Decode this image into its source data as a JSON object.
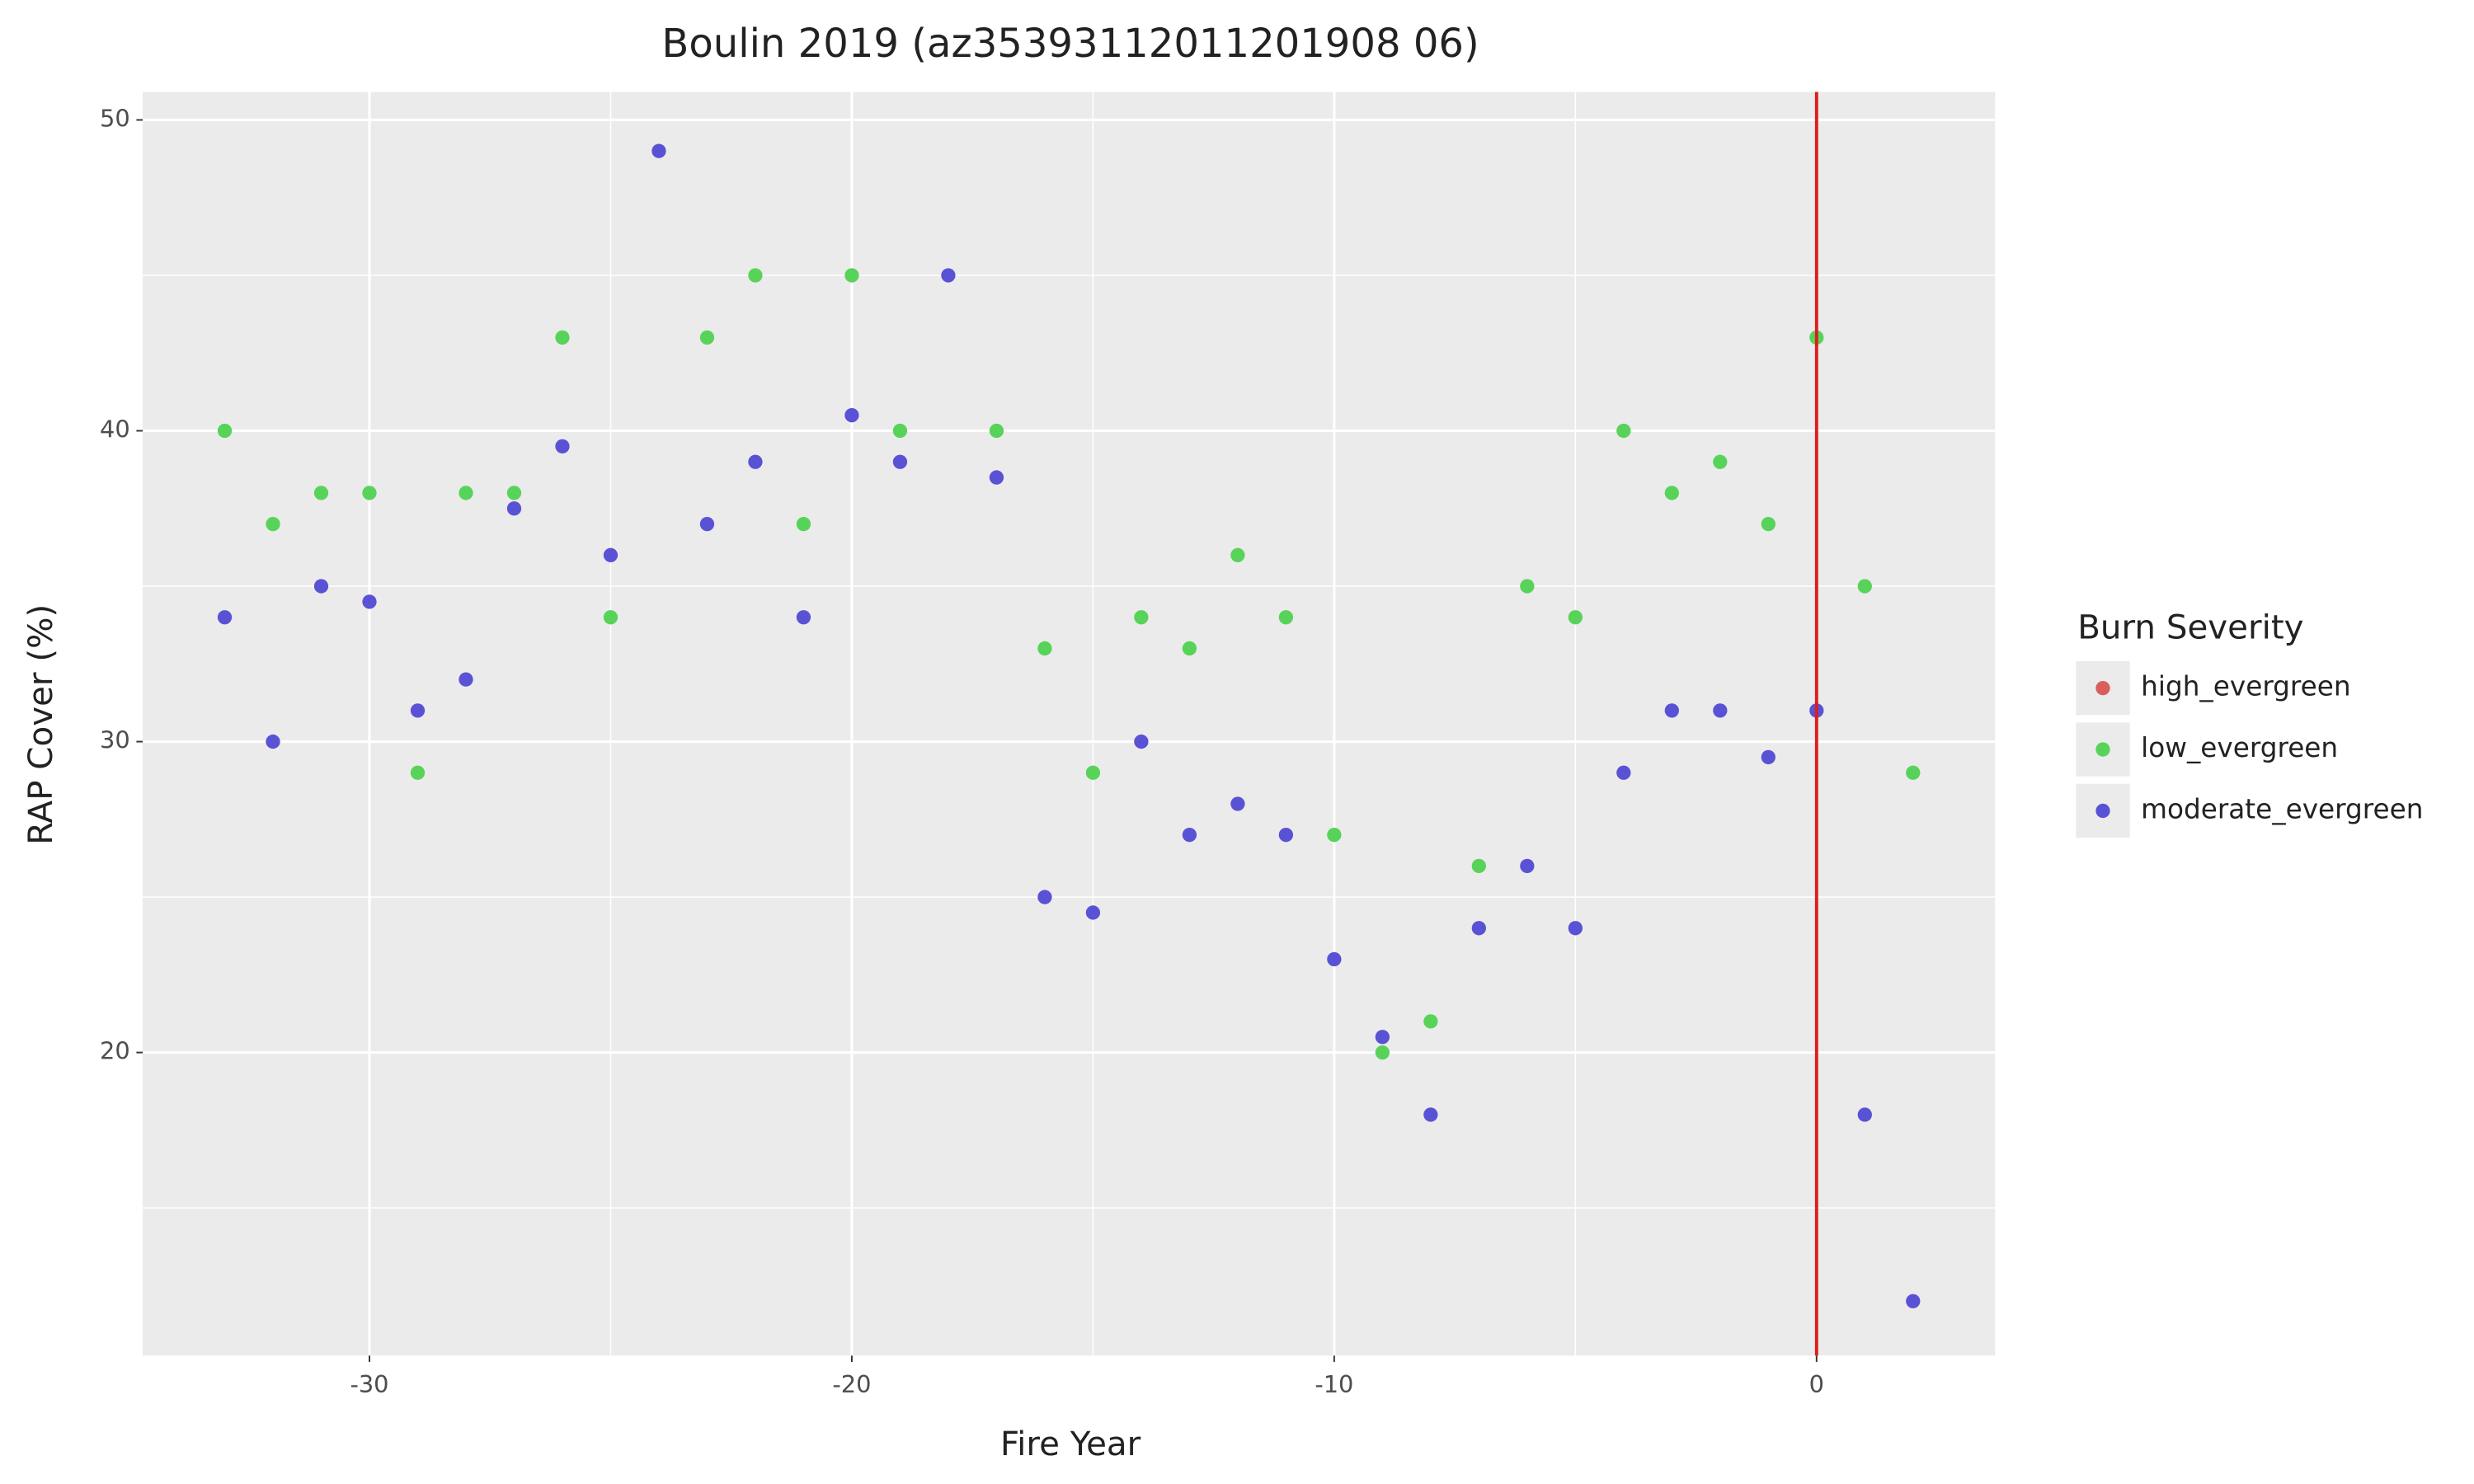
{
  "chart_data": {
    "type": "scatter",
    "title": "Boulin 2019 (az35393112011201908 06)",
    "x_label": "Fire Year",
    "y_label": "RAP Cover (%)",
    "legend_title": "Burn Severity",
    "legend_position": "right",
    "grid": true,
    "xlim": [
      -34.7,
      3.7
    ],
    "ylim": [
      10.25,
      50.9
    ],
    "xticks": [
      -30,
      -20,
      -10,
      0
    ],
    "yticks": [
      20,
      30,
      40,
      50
    ],
    "xminorticks": [
      -25,
      -15,
      -5
    ],
    "yminorticks": [
      15,
      25,
      35,
      45
    ],
    "vline": 0,
    "vline_color": "#dd1c1c",
    "series": [
      {
        "name": "high_evergreen",
        "color": "#d9605a",
        "x": [],
        "values": []
      },
      {
        "name": "low_evergreen",
        "color": "#58d35a",
        "x": [
          -33,
          -32,
          -31,
          -30,
          -29,
          -28,
          -27,
          -26,
          -25,
          -23,
          -22,
          -21,
          -20,
          -19,
          -17,
          -16,
          -15,
          -14,
          -13,
          -12,
          -11,
          -10,
          -9,
          -8,
          -7,
          -6,
          -5,
          -4,
          -3,
          -2,
          -1,
          0,
          1,
          2
        ],
        "values": [
          40,
          37,
          38,
          38,
          29,
          38,
          38,
          43,
          34,
          43,
          45,
          37,
          45,
          40,
          40,
          33,
          29,
          34,
          33,
          36,
          34,
          27,
          20,
          21,
          26,
          35,
          34,
          40,
          38,
          39,
          37,
          43,
          35,
          29
        ]
      },
      {
        "name": "moderate_evergreen",
        "color": "#5a52d5",
        "x": [
          -33,
          -32,
          -31,
          -30,
          -29,
          -28,
          -27,
          -26,
          -25,
          -24,
          -23,
          -22,
          -21,
          -20,
          -19,
          -18,
          -17,
          -16,
          -15,
          -14,
          -13,
          -12,
          -11,
          -10,
          -9,
          -8,
          -7,
          -6,
          -5,
          -4,
          -3,
          -2,
          -1,
          0,
          1,
          2
        ],
        "values": [
          34,
          30,
          35,
          34.5,
          31,
          32,
          37.5,
          39.5,
          36,
          49,
          37,
          39,
          34,
          40.5,
          39,
          45,
          38.5,
          25,
          24.5,
          30,
          27,
          28,
          27,
          23,
          20.5,
          18,
          24,
          26,
          24,
          29,
          31,
          31,
          29.5,
          31,
          18,
          12
        ]
      }
    ]
  }
}
